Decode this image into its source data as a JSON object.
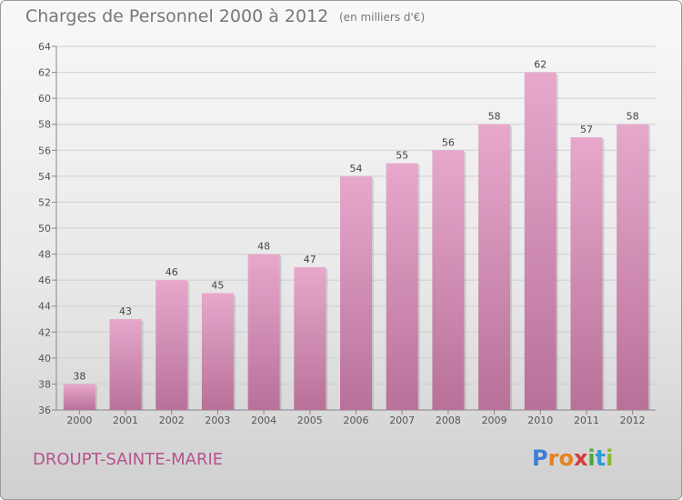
{
  "header": {
    "title": "Charges de Personnel 2000 à 2012",
    "subtitle": "(en milliers d'€)"
  },
  "footer": {
    "city": "DROUPT-SAINTE-MARIE",
    "logo_text": "Proxiti",
    "logo_colors": [
      "#3d7fd6",
      "#e8801f",
      "#e8801f",
      "#d63a3a",
      "#4aa83c",
      "#2c9bd6",
      "#8ab92d"
    ]
  },
  "colors": {
    "bar_top": "#e7a8cc",
    "bar_bottom": "#b87199",
    "grid": "#cfcfcf",
    "city": "#b5548a"
  },
  "chart_data": {
    "type": "bar",
    "title": "Charges de Personnel 2000 à 2012",
    "subtitle": "(en milliers d'€)",
    "categories": [
      "2000",
      "2001",
      "2002",
      "2003",
      "2004",
      "2005",
      "2006",
      "2007",
      "2008",
      "2009",
      "2010",
      "2011",
      "2012"
    ],
    "values": [
      38,
      43,
      46,
      45,
      48,
      47,
      54,
      55,
      56,
      58,
      62,
      57,
      58
    ],
    "ylim": [
      36,
      64
    ],
    "yticks": [
      36,
      38,
      40,
      42,
      44,
      46,
      48,
      50,
      52,
      54,
      56,
      58,
      60,
      62,
      64
    ],
    "grid": true,
    "data_labels": true
  }
}
